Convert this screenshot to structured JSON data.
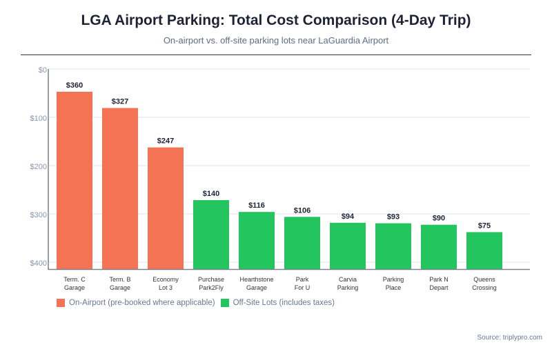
{
  "title": "LGA Airport Parking: Total Cost Comparison (4-Day Trip)",
  "subtitle": "On-airport vs. off-site parking lots near LaGuardia Airport",
  "source": "Source: triplypro.com",
  "chart_data": {
    "type": "bar",
    "categories": [
      [
        "Term. C",
        "Garage"
      ],
      [
        "Term. B",
        "Garage"
      ],
      [
        "Economy",
        "Lot 3"
      ],
      [
        "Purchase",
        "Park2Fly"
      ],
      [
        "Hearthstone",
        "Garage"
      ],
      [
        "Park",
        "For U"
      ],
      [
        "Carvia",
        "Parking"
      ],
      [
        "Parking",
        "Place"
      ],
      [
        "Park N",
        "Depart"
      ],
      [
        "Queens",
        "Crossing"
      ]
    ],
    "values": [
      360,
      327,
      247,
      140,
      116,
      106,
      94,
      93,
      90,
      75
    ],
    "data_labels": [
      "$360",
      "$327",
      "$247",
      "$140",
      "$116",
      "$106",
      "$94",
      "$93",
      "$90",
      "$75"
    ],
    "groups": [
      "on",
      "on",
      "on",
      "off",
      "off",
      "off",
      "off",
      "off",
      "off",
      "off"
    ],
    "y_ticks": [
      "$0",
      "$100",
      "$200",
      "$300",
      "$400"
    ],
    "ylim": [
      0,
      400
    ],
    "grid": true,
    "legend_placement": "bottom-left",
    "legend": [
      {
        "key": "on",
        "label": "On-Airport (pre-booked where applicable)",
        "color": "#f57355"
      },
      {
        "key": "off",
        "label": "Off-Site Lots (includes taxes)",
        "color": "#22c55e"
      }
    ]
  }
}
